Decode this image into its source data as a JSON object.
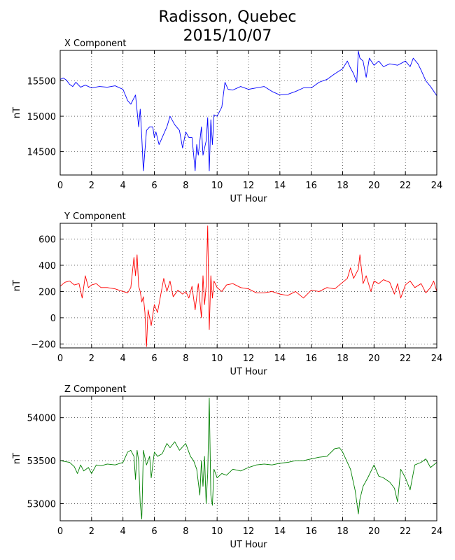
{
  "figure": {
    "title_line1": "Radisson, Quebec",
    "title_line2": "2015/10/07"
  },
  "chart_data": [
    {
      "type": "line",
      "title": "X Component",
      "xlabel": "UT Hour",
      "ylabel": "nT",
      "xlim": [
        0,
        24
      ],
      "ylim": [
        14170,
        15930
      ],
      "xticks": [
        0,
        2,
        4,
        6,
        8,
        10,
        12,
        14,
        16,
        18,
        20,
        22,
        24
      ],
      "yticks": [
        14500,
        15000,
        15500
      ],
      "grid": true,
      "color": "#0000ff",
      "x": [
        0,
        0.2,
        0.4,
        0.6,
        0.8,
        1.0,
        1.3,
        1.6,
        2.0,
        2.5,
        3.0,
        3.5,
        4.0,
        4.3,
        4.5,
        4.8,
        5.0,
        5.1,
        5.2,
        5.3,
        5.5,
        5.7,
        5.9,
        6.0,
        6.1,
        6.3,
        6.5,
        6.8,
        7.0,
        7.3,
        7.6,
        7.8,
        8.0,
        8.2,
        8.4,
        8.6,
        8.7,
        8.8,
        9.0,
        9.1,
        9.3,
        9.4,
        9.5,
        9.6,
        9.7,
        9.8,
        10.0,
        10.3,
        10.5,
        10.7,
        11.0,
        11.5,
        12.0,
        12.5,
        13.0,
        13.5,
        14.0,
        14.5,
        15.0,
        15.5,
        16.0,
        16.5,
        17.0,
        17.5,
        18.0,
        18.3,
        18.5,
        18.7,
        18.9,
        19.0,
        19.1,
        19.3,
        19.5,
        19.7,
        20.0,
        20.3,
        20.6,
        21.0,
        21.5,
        22.0,
        22.3,
        22.5,
        22.8,
        23.0,
        23.3,
        23.6,
        24.0
      ],
      "y": [
        15520,
        15540,
        15510,
        15450,
        15420,
        15480,
        15410,
        15440,
        15400,
        15420,
        15410,
        15430,
        15380,
        15220,
        15170,
        15300,
        14850,
        15100,
        14700,
        14230,
        14800,
        14850,
        14850,
        14700,
        14780,
        14600,
        14700,
        14850,
        15000,
        14880,
        14800,
        14550,
        14780,
        14700,
        14700,
        14230,
        14600,
        14450,
        14850,
        14450,
        14650,
        14980,
        14230,
        14950,
        14600,
        15020,
        15000,
        15130,
        15480,
        15380,
        15370,
        15420,
        15380,
        15400,
        15420,
        15350,
        15300,
        15310,
        15350,
        15400,
        15400,
        15480,
        15520,
        15600,
        15670,
        15780,
        15680,
        15600,
        15480,
        15920,
        15820,
        15780,
        15550,
        15820,
        15720,
        15780,
        15700,
        15740,
        15720,
        15780,
        15700,
        15820,
        15740,
        15650,
        15500,
        15420,
        15290
      ]
    },
    {
      "type": "line",
      "title": "Y Component",
      "xlabel": "UT Hour",
      "ylabel": "nT",
      "xlim": [
        0,
        24
      ],
      "ylim": [
        -230,
        720
      ],
      "xticks": [
        0,
        2,
        4,
        6,
        8,
        10,
        12,
        14,
        16,
        18,
        20,
        22,
        24
      ],
      "yticks": [
        -200,
        0,
        200,
        400,
        600
      ],
      "grid": true,
      "color": "#ff0000",
      "x": [
        0,
        0.3,
        0.6,
        0.9,
        1.2,
        1.4,
        1.6,
        1.8,
        2.0,
        2.3,
        2.6,
        3.0,
        3.5,
        4.0,
        4.3,
        4.5,
        4.7,
        4.8,
        4.9,
        5.0,
        5.1,
        5.2,
        5.3,
        5.4,
        5.5,
        5.6,
        5.8,
        6.0,
        6.2,
        6.4,
        6.6,
        6.8,
        7.0,
        7.2,
        7.5,
        7.8,
        8.0,
        8.2,
        8.4,
        8.6,
        8.8,
        9.0,
        9.1,
        9.2,
        9.3,
        9.4,
        9.5,
        9.6,
        9.7,
        9.8,
        10.0,
        10.3,
        10.6,
        11.0,
        11.5,
        12.0,
        12.5,
        13.0,
        13.5,
        14.0,
        14.5,
        15.0,
        15.5,
        16.0,
        16.5,
        17.0,
        17.5,
        18.0,
        18.3,
        18.5,
        18.7,
        19.0,
        19.1,
        19.3,
        19.5,
        19.8,
        20.0,
        20.3,
        20.6,
        21.0,
        21.3,
        21.5,
        21.7,
        22.0,
        22.3,
        22.6,
        23.0,
        23.3,
        23.6,
        23.8,
        24.0
      ],
      "y": [
        240,
        270,
        280,
        250,
        260,
        150,
        320,
        230,
        250,
        260,
        230,
        230,
        220,
        200,
        190,
        230,
        460,
        320,
        480,
        240,
        200,
        120,
        160,
        40,
        -220,
        60,
        -60,
        100,
        40,
        170,
        300,
        200,
        280,
        160,
        210,
        180,
        200,
        150,
        240,
        60,
        260,
        0,
        320,
        100,
        240,
        700,
        -90,
        320,
        150,
        280,
        230,
        200,
        250,
        260,
        230,
        220,
        190,
        190,
        200,
        180,
        170,
        200,
        150,
        210,
        200,
        230,
        220,
        270,
        300,
        380,
        300,
        370,
        480,
        260,
        320,
        200,
        280,
        260,
        290,
        270,
        180,
        260,
        150,
        250,
        280,
        230,
        260,
        190,
        230,
        280,
        200
      ]
    },
    {
      "type": "line",
      "title": "Z Component",
      "xlabel": "UT Hour",
      "ylabel": "nT",
      "xlim": [
        0,
        24
      ],
      "ylim": [
        52800,
        54250
      ],
      "xticks": [
        0,
        2,
        4,
        6,
        8,
        10,
        12,
        14,
        16,
        18,
        20,
        22,
        24
      ],
      "yticks": [
        53000,
        53500,
        54000
      ],
      "grid": true,
      "color": "#008000",
      "x": [
        0,
        0.3,
        0.6,
        0.9,
        1.1,
        1.3,
        1.5,
        1.8,
        2.0,
        2.3,
        2.6,
        3.0,
        3.5,
        4.0,
        4.3,
        4.5,
        4.7,
        4.8,
        4.9,
        5.0,
        5.1,
        5.2,
        5.3,
        5.5,
        5.7,
        5.8,
        6.0,
        6.2,
        6.5,
        6.8,
        7.0,
        7.3,
        7.6,
        8.0,
        8.3,
        8.5,
        8.7,
        8.9,
        9.0,
        9.1,
        9.2,
        9.3,
        9.4,
        9.5,
        9.6,
        9.7,
        9.8,
        10.0,
        10.3,
        10.6,
        11.0,
        11.5,
        12.0,
        12.5,
        13.0,
        13.5,
        14.0,
        14.5,
        15.0,
        15.5,
        16.0,
        16.5,
        17.0,
        17.5,
        17.8,
        18.0,
        18.3,
        18.5,
        18.8,
        19.0,
        19.1,
        19.3,
        19.6,
        20.0,
        20.3,
        20.6,
        21.0,
        21.3,
        21.5,
        21.7,
        22.0,
        22.3,
        22.6,
        23.0,
        23.3,
        23.6,
        24.0
      ],
      "y": [
        53500,
        53490,
        53480,
        53430,
        53350,
        53450,
        53380,
        53420,
        53350,
        53450,
        53440,
        53460,
        53450,
        53480,
        53600,
        53620,
        53550,
        53280,
        53620,
        53500,
        53000,
        52820,
        53620,
        53450,
        53550,
        53300,
        53600,
        53550,
        53580,
        53700,
        53650,
        53720,
        53620,
        53700,
        53550,
        53500,
        53400,
        53100,
        53500,
        53200,
        53550,
        53000,
        53350,
        54230,
        53100,
        52980,
        53400,
        53300,
        53350,
        53330,
        53400,
        53380,
        53420,
        53450,
        53460,
        53450,
        53470,
        53480,
        53500,
        53500,
        53520,
        53540,
        53550,
        53640,
        53650,
        53600,
        53480,
        53400,
        53150,
        52880,
        53050,
        53200,
        53300,
        53450,
        53320,
        53300,
        53250,
        53180,
        53020,
        53400,
        53300,
        53160,
        53450,
        53480,
        53520,
        53420,
        53480
      ]
    }
  ]
}
